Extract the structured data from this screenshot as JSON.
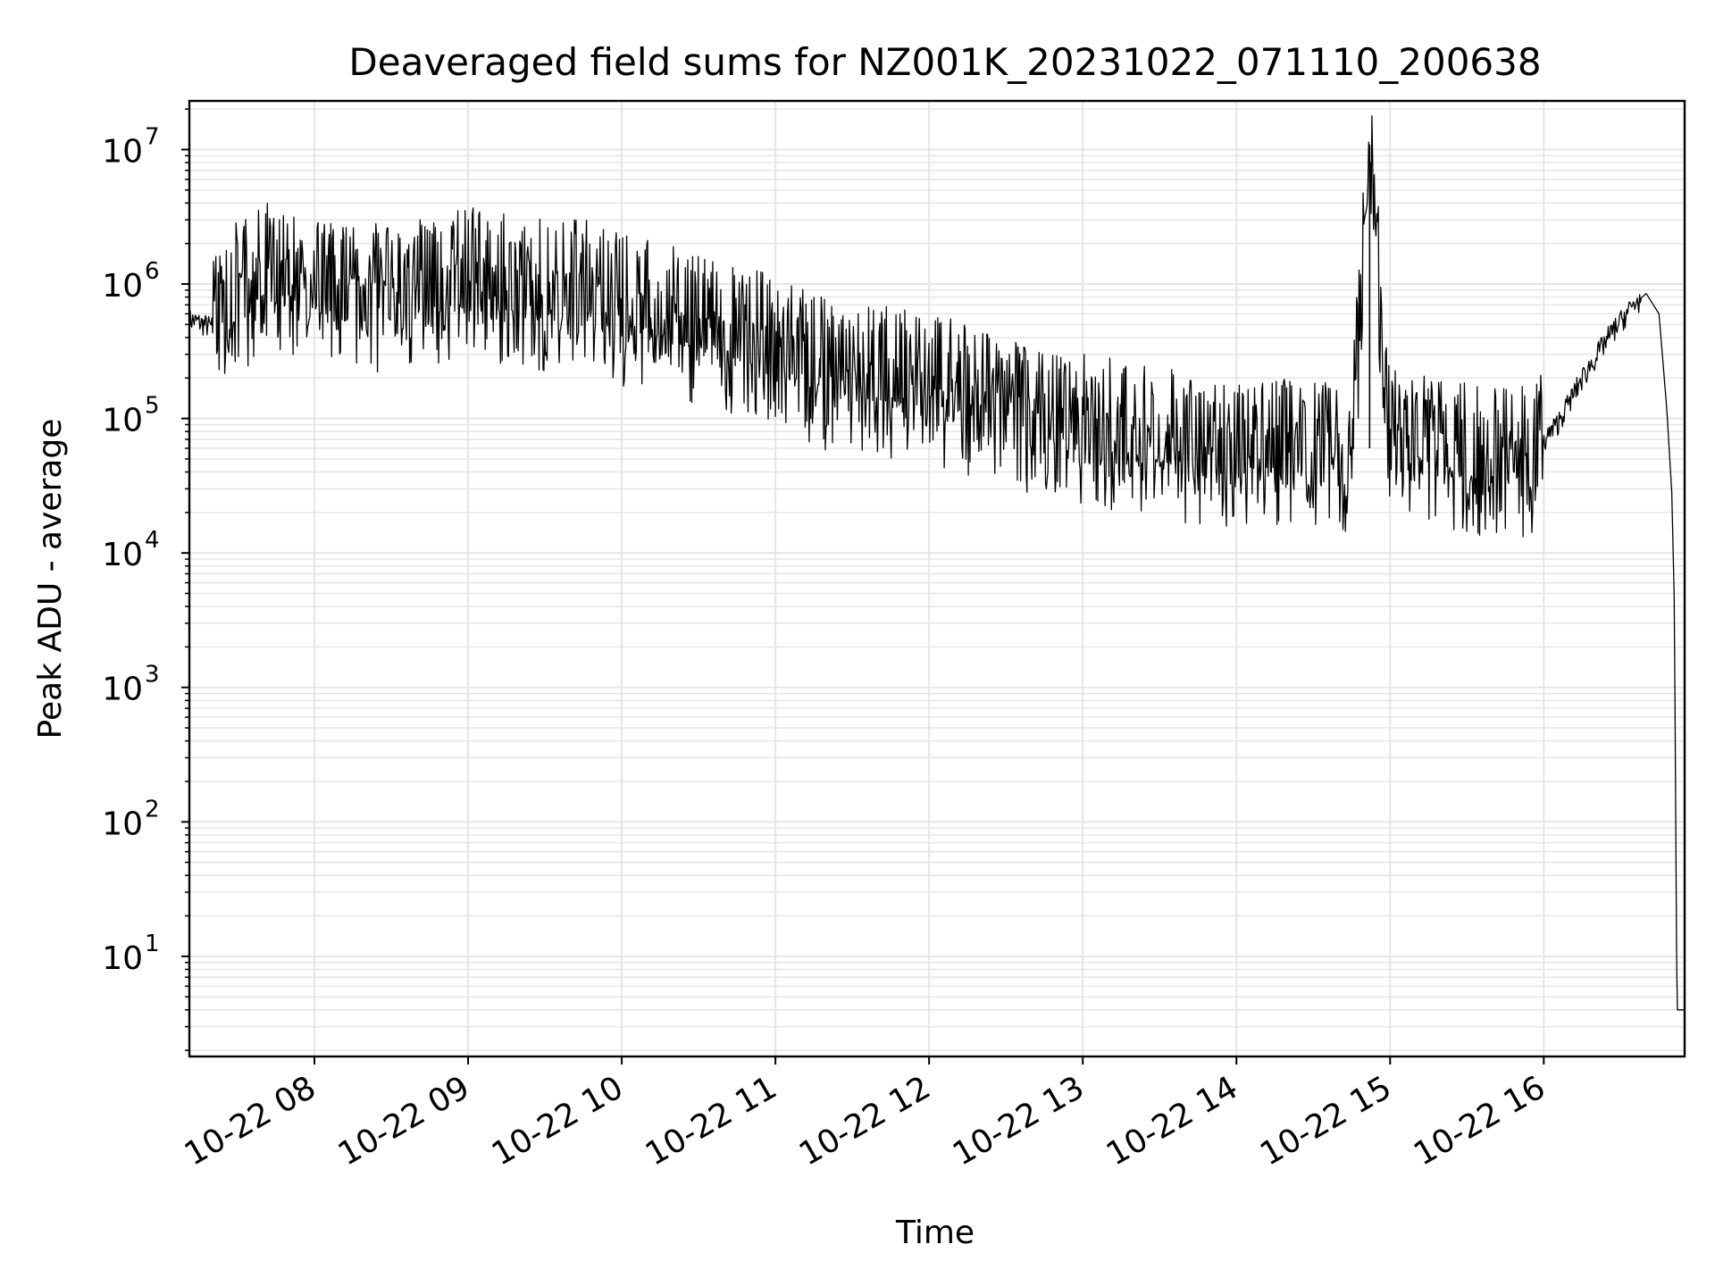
{
  "chart_data": {
    "type": "line",
    "title": "Deaveraged field sums for NZ001K_20231022_071110_200638",
    "xlabel": "Time",
    "ylabel": "Peak ADU - average",
    "yscale": "log",
    "ylim": [
      1.8,
      23000000
    ],
    "xlim": [
      "2023-10-22 07:11:10",
      "2023-10-22 16:55:00"
    ],
    "grid": true,
    "line_color": "#000000",
    "grid_color": "#e5e5e5",
    "x_ticks": [
      {
        "value": "2023-10-22 08:00",
        "label": "10-22 08"
      },
      {
        "value": "2023-10-22 09:00",
        "label": "10-22 09"
      },
      {
        "value": "2023-10-22 10:00",
        "label": "10-22 10"
      },
      {
        "value": "2023-10-22 11:00",
        "label": "10-22 11"
      },
      {
        "value": "2023-10-22 12:00",
        "label": "10-22 12"
      },
      {
        "value": "2023-10-22 13:00",
        "label": "10-22 13"
      },
      {
        "value": "2023-10-22 14:00",
        "label": "10-22 14"
      },
      {
        "value": "2023-10-22 15:00",
        "label": "10-22 15"
      },
      {
        "value": "2023-10-22 16:00",
        "label": "10-22 16"
      }
    ],
    "y_ticks": [
      {
        "value": 10,
        "label": "10",
        "exp": "1"
      },
      {
        "value": 100,
        "label": "10",
        "exp": "2"
      },
      {
        "value": 1000,
        "label": "10",
        "exp": "3"
      },
      {
        "value": 10000,
        "label": "10",
        "exp": "4"
      },
      {
        "value": 100000,
        "label": "10",
        "exp": "5"
      },
      {
        "value": 1000000,
        "label": "10",
        "exp": "6"
      },
      {
        "value": 10000000,
        "label": "10",
        "exp": "7"
      }
    ],
    "series": [
      {
        "x": [
          "2023-10-22 07:11",
          "2023-10-22 07:20",
          "2023-10-22 07:25",
          "2023-10-22 07:30",
          "2023-10-22 07:35",
          "2023-10-22 07:40",
          "2023-10-22 07:50",
          "2023-10-22 08:00",
          "2023-10-22 08:15",
          "2023-10-22 08:30",
          "2023-10-22 08:45",
          "2023-10-22 09:00",
          "2023-10-22 09:15",
          "2023-10-22 09:30",
          "2023-10-22 09:45",
          "2023-10-22 10:00",
          "2023-10-22 10:15",
          "2023-10-22 10:30",
          "2023-10-22 10:45",
          "2023-10-22 11:00",
          "2023-10-22 11:15",
          "2023-10-22 11:30",
          "2023-10-22 11:45",
          "2023-10-22 12:00",
          "2023-10-22 12:15",
          "2023-10-22 12:30",
          "2023-10-22 12:45",
          "2023-10-22 13:00",
          "2023-10-22 13:15",
          "2023-10-22 13:30",
          "2023-10-22 13:45",
          "2023-10-22 14:00",
          "2023-10-22 14:15",
          "2023-10-22 14:30",
          "2023-10-22 14:45",
          "2023-10-22 14:52",
          "2023-10-22 15:00",
          "2023-10-22 15:15",
          "2023-10-22 15:30",
          "2023-10-22 15:45",
          "2023-10-22 15:55",
          "2023-10-22 16:05",
          "2023-10-22 16:15",
          "2023-10-22 16:25",
          "2023-10-22 16:35",
          "2023-10-22 16:40",
          "2023-10-22 16:45",
          "2023-10-22 16:48",
          "2023-10-22 16:50",
          "2023-10-22 16:51",
          "2023-10-22 16:52",
          "2023-10-22 16:55"
        ],
        "y": [
          550000,
          480000,
          520000,
          900000,
          1000000,
          1200000,
          1100000,
          900000,
          800000,
          850000,
          900000,
          1100000,
          1000000,
          900000,
          950000,
          700000,
          600000,
          500000,
          400000,
          350000,
          250000,
          200000,
          200000,
          180000,
          150000,
          120000,
          100000,
          90000,
          80000,
          70000,
          65000,
          60000,
          60000,
          55000,
          55000,
          10900000,
          70000,
          60000,
          55000,
          50000,
          52000,
          90000,
          200000,
          400000,
          700000,
          850000,
          600000,
          120000,
          28000,
          4000,
          4,
          4
        ]
      }
    ]
  }
}
